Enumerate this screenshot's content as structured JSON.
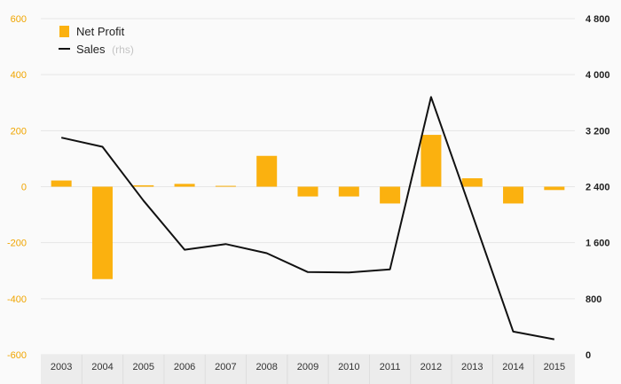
{
  "colors": {
    "bar": "#fbb10f",
    "line": "#111111",
    "grid": "#e6e6e6",
    "left_axis_text": "#f0a500",
    "right_axis_text": "#222222",
    "background": "#fafafa",
    "xaxis_band": "#ececec"
  },
  "chart_data": {
    "type": "bar",
    "categories": [
      "2003",
      "2004",
      "2005",
      "2006",
      "2007",
      "2008",
      "2009",
      "2010",
      "2011",
      "2012",
      "2013",
      "2014",
      "2015"
    ],
    "series": [
      {
        "name": "Net Profit",
        "type": "bar",
        "axis": "left",
        "values": [
          22,
          -330,
          5,
          10,
          3,
          110,
          -35,
          -35,
          -60,
          185,
          30,
          -60,
          -12
        ]
      },
      {
        "name": "Sales",
        "name_suffix": "(rhs)",
        "type": "line",
        "axis": "right",
        "values": [
          3100,
          2970,
          2200,
          1500,
          1580,
          1450,
          1180,
          1175,
          1220,
          3680,
          2010,
          330,
          220
        ]
      }
    ],
    "y_left": {
      "min": -600,
      "max": 600,
      "ticks": [
        -600,
        -400,
        -200,
        0,
        200,
        400,
        600
      ],
      "tick_labels": [
        "-600",
        "-400",
        "-200",
        "0",
        "200",
        "400",
        "600"
      ]
    },
    "y_right": {
      "min": 0,
      "max": 4800,
      "ticks": [
        0,
        800,
        1600,
        2400,
        3200,
        4000,
        4800
      ],
      "tick_labels": [
        "0",
        "800",
        "1 600",
        "2 400",
        "3 200",
        "4 000",
        "4 800"
      ]
    },
    "grid": true,
    "legend_position": "top-left"
  }
}
